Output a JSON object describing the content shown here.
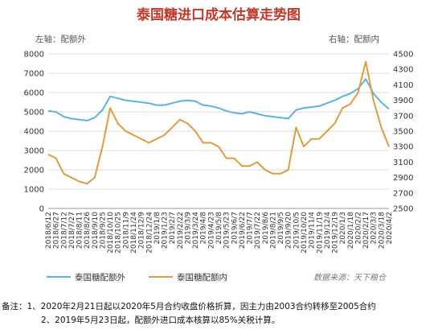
{
  "chart_data": {
    "type": "line",
    "title": "泰国糖进口成本估算走势图",
    "left_axis_title": "左轴：配额外",
    "right_axis_title": "右轴：配额内",
    "y_left": {
      "min": 0,
      "max": 8000,
      "ticks": [
        0,
        1000,
        2000,
        3000,
        4000,
        5000,
        6000,
        7000,
        8000
      ]
    },
    "y_right": {
      "min": 2500,
      "max": 4500,
      "ticks": [
        2500,
        2700,
        2900,
        3100,
        3300,
        3500,
        3700,
        3900,
        4100,
        4300,
        4500
      ]
    },
    "grid": true,
    "legend_position": "bottom-left",
    "x_labels": [
      "2018/6/12",
      "2018/6/27",
      "2018/7/12",
      "2018/7/27",
      "2018/8/11",
      "2018/8/26",
      "2018/9/10",
      "2018/9/25",
      "2018/10/10",
      "2018/10/25",
      "2018/11/9",
      "2018/11/24",
      "2018/12/9",
      "2018/12/24",
      "2019/1/8",
      "2019/1/23",
      "2019/2/7",
      "2019/2/22",
      "2019/3/9",
      "2019/3/24",
      "2019/4/8",
      "2019/4/23",
      "2019/5/8",
      "2019/5/23",
      "2019/6/7",
      "2019/6/22",
      "2019/7/7",
      "2019/7/22",
      "2019/8/6",
      "2019/8/21",
      "2019/9/5",
      "2019/9/20",
      "2019/10/5",
      "2019/10/20",
      "2019/11/4",
      "2019/11/19",
      "2019/12/4",
      "2019/12/19",
      "2020/1/3",
      "2020/1/18",
      "2020/2/2",
      "2020/2/17",
      "2020/3/3",
      "2020/3/18",
      "2020/4/2"
    ],
    "series": [
      {
        "name": "泰国糖配额外",
        "axis": "left",
        "color": "#5bb5d9",
        "values": [
          5050,
          5000,
          4750,
          4650,
          4600,
          4550,
          4700,
          5100,
          5800,
          5700,
          5600,
          5550,
          5500,
          5450,
          5350,
          5350,
          5450,
          5550,
          5600,
          5550,
          5350,
          5300,
          5200,
          5050,
          4950,
          4900,
          5000,
          4900,
          4800,
          4750,
          4700,
          4650,
          5100,
          5200,
          5250,
          5300,
          5450,
          5600,
          5800,
          5950,
          6200,
          6700,
          5950,
          5500,
          5150
        ]
      },
      {
        "name": "泰国糖配额内",
        "axis": "right",
        "color": "#e39a3b",
        "values": [
          3200,
          3150,
          2950,
          2900,
          2850,
          2820,
          2900,
          3300,
          3800,
          3600,
          3500,
          3450,
          3400,
          3350,
          3400,
          3450,
          3550,
          3650,
          3600,
          3500,
          3350,
          3350,
          3300,
          3150,
          3150,
          3050,
          3050,
          3100,
          3000,
          2950,
          2950,
          3000,
          3550,
          3300,
          3400,
          3400,
          3500,
          3600,
          3800,
          3850,
          4000,
          4400,
          3900,
          3550,
          3300
        ]
      }
    ],
    "source": "数据来源：天下粮仓"
  },
  "notes": {
    "label": "备注：",
    "line1": "1、2020年2月21日起以2020年5月合约收盘价格折算，因主力由2003合约转移至2005合约",
    "line2": "2、2019年5月23日起，配额外进口成本核算以85%关税计算。"
  }
}
